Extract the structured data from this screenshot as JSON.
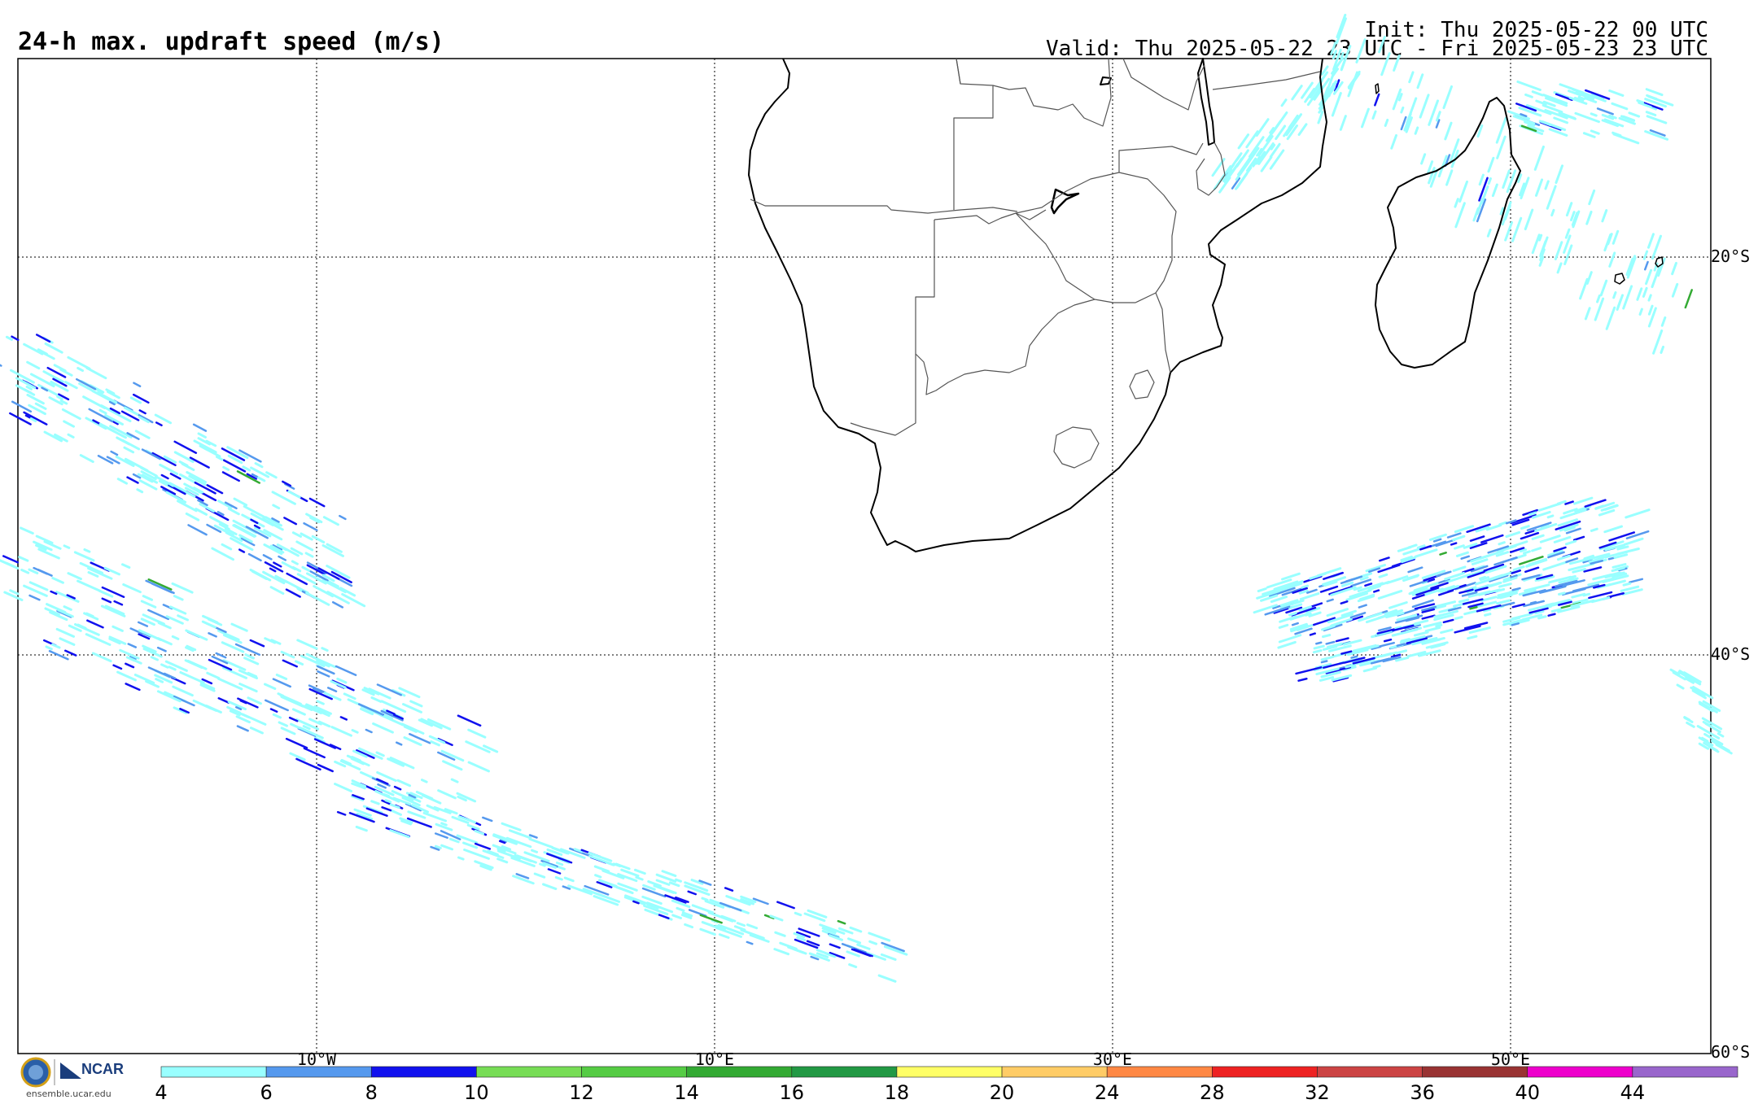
{
  "title": "24-h max. updraft speed (m/s)",
  "init": "Init: Thu 2025-05-22 00 UTC",
  "valid": "Valid: Thu 2025-05-22 23 UTC - Fri 2025-05-23 23 UTC",
  "longitude_labels": [
    "10°W",
    "10°E",
    "30°E",
    "50°E"
  ],
  "latitude_labels": [
    "20°S",
    "40°S",
    "60°S"
  ],
  "colorbar": {
    "ticks": [
      "4",
      "6",
      "8",
      "10",
      "12",
      "14",
      "16",
      "18",
      "20",
      "24",
      "28",
      "32",
      "36",
      "40",
      "44"
    ],
    "colors": [
      "#99ffff",
      "#5599ee",
      "#1111ee",
      "#77dd55",
      "#55cc44",
      "#33aa33",
      "#229944",
      "#ffff66",
      "#ffcc66",
      "#ff8844",
      "#ee2222",
      "#cc4444",
      "#993333",
      "#ee00cc",
      "#9966cc"
    ]
  },
  "logo": {
    "org": "NCAR",
    "url_text": "ensemble.ucar.edu"
  },
  "colors": {
    "light": "#99ffff",
    "medium": "#5599ee",
    "strong": "#1111ee",
    "green": "#33aa33"
  }
}
